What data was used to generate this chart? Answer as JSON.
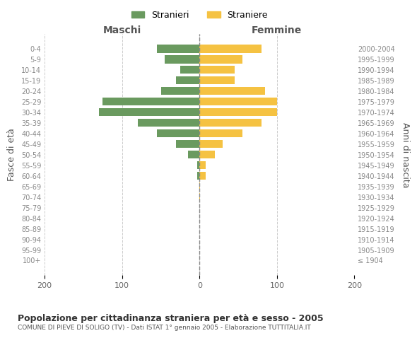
{
  "age_groups": [
    "100+",
    "95-99",
    "90-94",
    "85-89",
    "80-84",
    "75-79",
    "70-74",
    "65-69",
    "60-64",
    "55-59",
    "50-54",
    "45-49",
    "40-44",
    "35-39",
    "30-34",
    "25-29",
    "20-24",
    "15-19",
    "10-14",
    "5-9",
    "0-4"
  ],
  "birth_years": [
    "≤ 1904",
    "1905-1909",
    "1910-1914",
    "1915-1919",
    "1920-1924",
    "1925-1929",
    "1930-1934",
    "1935-1939",
    "1940-1944",
    "1945-1949",
    "1950-1954",
    "1955-1959",
    "1960-1964",
    "1965-1969",
    "1970-1974",
    "1975-1979",
    "1980-1984",
    "1985-1989",
    "1990-1994",
    "1995-1999",
    "2000-2004"
  ],
  "males": [
    0,
    0,
    0,
    0,
    0,
    0,
    0,
    0,
    3,
    3,
    15,
    30,
    55,
    80,
    130,
    125,
    50,
    30,
    25,
    45,
    55
  ],
  "females": [
    0,
    0,
    0,
    0,
    0,
    0,
    1,
    1,
    8,
    8,
    20,
    30,
    55,
    80,
    100,
    100,
    85,
    45,
    45,
    55,
    80
  ],
  "male_color": "#6a9a5f",
  "female_color": "#f5c242",
  "background_color": "#ffffff",
  "grid_color": "#cccccc",
  "title": "Popolazione per cittadinanza straniera per età e sesso - 2005",
  "subtitle": "COMUNE DI PIEVE DI SOLIGO (TV) - Dati ISTAT 1° gennaio 2005 - Elaborazione TUTTITALIA.IT",
  "ylabel_left": "Fasce di età",
  "ylabel_right": "Anni di nascita",
  "xlabel_left": "Maschi",
  "xlabel_right": "Femmine",
  "legend_male": "Stranieri",
  "legend_female": "Straniere",
  "xlim": [
    -200,
    200
  ],
  "xticks": [
    -200,
    -100,
    0,
    100,
    200
  ],
  "xticklabels": [
    "200",
    "100",
    "0",
    "100",
    "200"
  ]
}
